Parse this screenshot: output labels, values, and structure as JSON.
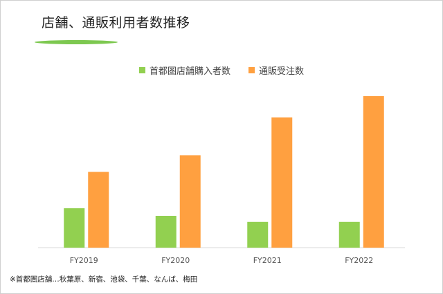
{
  "title": "店舗、通販利用者数推移",
  "footnote": "※首都圏店舗…秋葉原、新宿、池袋、千葉、なんば、梅田",
  "colors": {
    "store": "#92d050",
    "mailorder": "#ffa040",
    "accent_line": "#7dc850",
    "axis": "#d9d9d9"
  },
  "chart_data": {
    "type": "bar",
    "title": "",
    "xlabel": "",
    "ylabel": "",
    "categories": [
      "FY2019",
      "FY2020",
      "FY2021",
      "FY2022"
    ],
    "series": [
      {
        "name": "首都圏店舗購入者数",
        "values": [
          26,
          21,
          17,
          17
        ]
      },
      {
        "name": "通販受注数",
        "values": [
          50,
          61,
          86,
          100
        ]
      }
    ],
    "ylim": [
      0,
      100
    ],
    "grid": false,
    "legend_position": "top-center"
  }
}
